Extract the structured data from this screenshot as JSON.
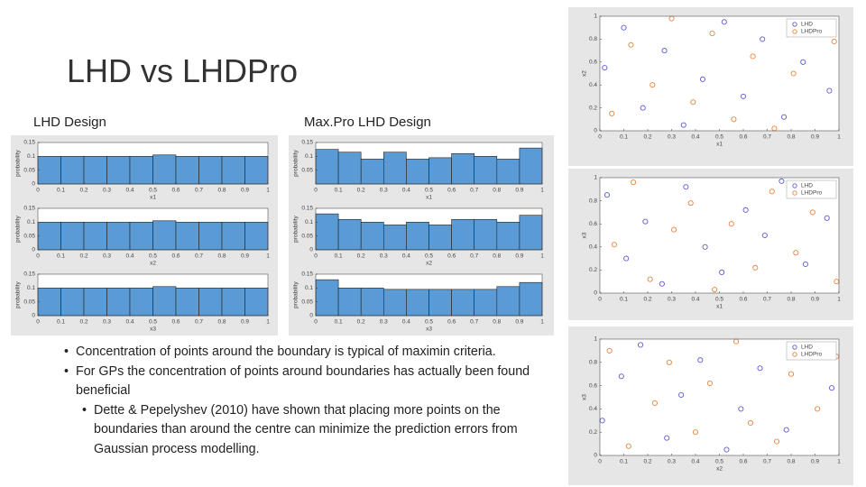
{
  "slide": {
    "title": "LHD vs LHDPro",
    "left_heading": "LHD Design",
    "right_heading": "Max.Pro LHD Design",
    "bullets": [
      "Concentration of points around the boundary is typical of maximin criteria.",
      "For GPs the concentration of points around boundaries has actually been found beneficial"
    ],
    "sub_bullets": [
      "Dette & Pepelyshev (2010) have shown that placing more points on the boundaries than around the centre can minimize the prediction errors from Gaussian process modelling."
    ]
  },
  "chart_data": [
    {
      "type": "histogram",
      "xlabel": "x1",
      "ylabel": "probability",
      "color": "#5b9bd5",
      "bins": [
        0,
        0.1,
        0.2,
        0.3,
        0.4,
        0.5,
        0.6,
        0.7,
        0.8,
        0.9,
        1
      ],
      "values": [
        0.1,
        0.1,
        0.1,
        0.1,
        0.1,
        0.105,
        0.1,
        0.1,
        0.1,
        0.1
      ],
      "xlim": [
        0,
        1
      ],
      "ylim": [
        0,
        0.15
      ],
      "xticks": [
        0,
        0.1,
        0.2,
        0.3,
        0.4,
        0.5,
        0.6,
        0.7,
        0.8,
        0.9,
        1
      ],
      "yticks": [
        0,
        0.05,
        0.1,
        0.15
      ]
    },
    {
      "type": "histogram",
      "xlabel": "x2",
      "ylabel": "probability",
      "color": "#5b9bd5",
      "bins": [
        0,
        0.1,
        0.2,
        0.3,
        0.4,
        0.5,
        0.6,
        0.7,
        0.8,
        0.9,
        1
      ],
      "values": [
        0.1,
        0.1,
        0.1,
        0.1,
        0.1,
        0.105,
        0.1,
        0.1,
        0.1,
        0.1
      ],
      "xlim": [
        0,
        1
      ],
      "ylim": [
        0,
        0.15
      ],
      "xticks": [
        0,
        0.1,
        0.2,
        0.3,
        0.4,
        0.5,
        0.6,
        0.7,
        0.8,
        0.9,
        1
      ],
      "yticks": [
        0,
        0.05,
        0.1,
        0.15
      ]
    },
    {
      "type": "histogram",
      "xlabel": "x3",
      "ylabel": "probability",
      "color": "#5b9bd5",
      "bins": [
        0,
        0.1,
        0.2,
        0.3,
        0.4,
        0.5,
        0.6,
        0.7,
        0.8,
        0.9,
        1
      ],
      "values": [
        0.1,
        0.1,
        0.1,
        0.1,
        0.1,
        0.105,
        0.1,
        0.1,
        0.1,
        0.1
      ],
      "xlim": [
        0,
        1
      ],
      "ylim": [
        0,
        0.15
      ],
      "xticks": [
        0,
        0.1,
        0.2,
        0.3,
        0.4,
        0.5,
        0.6,
        0.7,
        0.8,
        0.9,
        1
      ],
      "yticks": [
        0,
        0.05,
        0.1,
        0.15
      ]
    },
    {
      "type": "histogram",
      "xlabel": "x1",
      "ylabel": "probability",
      "color": "#5b9bd5",
      "bins": [
        0,
        0.1,
        0.2,
        0.3,
        0.4,
        0.5,
        0.6,
        0.7,
        0.8,
        0.9,
        1
      ],
      "values": [
        0.125,
        0.115,
        0.09,
        0.115,
        0.09,
        0.095,
        0.11,
        0.1,
        0.09,
        0.13
      ],
      "xlim": [
        0,
        1
      ],
      "ylim": [
        0,
        0.15
      ],
      "xticks": [
        0,
        0.1,
        0.2,
        0.3,
        0.4,
        0.5,
        0.6,
        0.7,
        0.8,
        0.9,
        1
      ],
      "yticks": [
        0.05,
        0.1,
        0.15
      ]
    },
    {
      "type": "histogram",
      "xlabel": "x2",
      "ylabel": "probability",
      "color": "#5b9bd5",
      "bins": [
        0,
        0.1,
        0.2,
        0.3,
        0.4,
        0.5,
        0.6,
        0.7,
        0.8,
        0.9,
        1
      ],
      "values": [
        0.13,
        0.11,
        0.1,
        0.09,
        0.1,
        0.09,
        0.11,
        0.11,
        0.1,
        0.125
      ],
      "xlim": [
        0,
        1
      ],
      "ylim": [
        0,
        0.15
      ],
      "xticks": [
        0,
        0.1,
        0.2,
        0.3,
        0.4,
        0.5,
        0.6,
        0.7,
        0.8,
        0.9,
        1
      ],
      "yticks": [
        0,
        0.05,
        0.1,
        0.15
      ]
    },
    {
      "type": "histogram",
      "xlabel": "x3",
      "ylabel": "probability",
      "color": "#5b9bd5",
      "bins": [
        0,
        0.1,
        0.2,
        0.3,
        0.4,
        0.5,
        0.6,
        0.7,
        0.8,
        0.9,
        1
      ],
      "values": [
        0.13,
        0.1,
        0.1,
        0.095,
        0.095,
        0.095,
        0.095,
        0.095,
        0.105,
        0.12
      ],
      "xlim": [
        0,
        1
      ],
      "ylim": [
        0,
        0.15
      ],
      "xticks": [
        0,
        0.1,
        0.2,
        0.3,
        0.4,
        0.5,
        0.6,
        0.7,
        0.8,
        0.9,
        1
      ],
      "yticks": [
        0,
        0.05,
        0.1,
        0.15
      ]
    },
    {
      "type": "scatter",
      "xlabel": "x1",
      "ylabel": "x2",
      "xlim": [
        0,
        1
      ],
      "ylim": [
        0,
        1
      ],
      "xticks": [
        0,
        0.1,
        0.2,
        0.3,
        0.4,
        0.5,
        0.6,
        0.7,
        0.8,
        0.9,
        1
      ],
      "yticks": [
        0,
        0.2,
        0.4,
        0.6,
        0.8,
        1
      ],
      "series": [
        {
          "name": "LHD",
          "color": "#5b5bd6",
          "x": [
            0.02,
            0.1,
            0.18,
            0.27,
            0.35,
            0.43,
            0.52,
            0.6,
            0.68,
            0.77,
            0.85,
            0.96
          ],
          "values": [
            0.55,
            0.9,
            0.2,
            0.7,
            0.05,
            0.45,
            0.95,
            0.3,
            0.8,
            0.12,
            0.6,
            0.35
          ]
        },
        {
          "name": "LHDPro",
          "color": "#e8843c",
          "x": [
            0.05,
            0.13,
            0.22,
            0.3,
            0.39,
            0.47,
            0.56,
            0.64,
            0.73,
            0.81,
            0.9,
            0.98
          ],
          "values": [
            0.15,
            0.75,
            0.4,
            0.98,
            0.25,
            0.85,
            0.1,
            0.65,
            0.02,
            0.5,
            0.92,
            0.78
          ]
        }
      ]
    },
    {
      "type": "scatter",
      "xlabel": "x1",
      "ylabel": "x3",
      "xlim": [
        0,
        1
      ],
      "ylim": [
        0,
        1
      ],
      "xticks": [
        0,
        0.1,
        0.2,
        0.3,
        0.4,
        0.5,
        0.6,
        0.7,
        0.8,
        0.9,
        1
      ],
      "yticks": [
        0,
        0.2,
        0.4,
        0.6,
        0.8,
        1
      ],
      "series": [
        {
          "name": "LHD",
          "color": "#5b5bd6",
          "x": [
            0.03,
            0.11,
            0.19,
            0.26,
            0.36,
            0.44,
            0.51,
            0.61,
            0.69,
            0.76,
            0.86,
            0.95
          ],
          "values": [
            0.85,
            0.3,
            0.62,
            0.08,
            0.92,
            0.4,
            0.18,
            0.72,
            0.5,
            0.97,
            0.25,
            0.65
          ]
        },
        {
          "name": "LHDPro",
          "color": "#e8843c",
          "x": [
            0.06,
            0.14,
            0.21,
            0.31,
            0.38,
            0.48,
            0.55,
            0.65,
            0.72,
            0.82,
            0.89,
            0.99
          ],
          "values": [
            0.42,
            0.96,
            0.12,
            0.55,
            0.78,
            0.03,
            0.6,
            0.22,
            0.88,
            0.35,
            0.7,
            0.1
          ]
        }
      ]
    },
    {
      "type": "scatter",
      "xlabel": "x2",
      "ylabel": "x3",
      "xlim": [
        0,
        1
      ],
      "ylim": [
        0,
        1
      ],
      "xticks": [
        0,
        0.1,
        0.2,
        0.3,
        0.4,
        0.5,
        0.6,
        0.7,
        0.8,
        0.9,
        1
      ],
      "yticks": [
        0,
        0.2,
        0.4,
        0.6,
        0.8,
        1
      ],
      "series": [
        {
          "name": "LHD",
          "color": "#5b5bd6",
          "x": [
            0.01,
            0.09,
            0.17,
            0.28,
            0.34,
            0.42,
            0.53,
            0.59,
            0.67,
            0.78,
            0.84,
            0.97
          ],
          "values": [
            0.3,
            0.68,
            0.95,
            0.15,
            0.52,
            0.82,
            0.05,
            0.4,
            0.75,
            0.22,
            0.9,
            0.58
          ]
        },
        {
          "name": "LHDPro",
          "color": "#e8843c",
          "x": [
            0.04,
            0.12,
            0.23,
            0.29,
            0.4,
            0.46,
            0.57,
            0.63,
            0.74,
            0.8,
            0.91,
            0.99
          ],
          "values": [
            0.9,
            0.08,
            0.45,
            0.8,
            0.2,
            0.62,
            0.98,
            0.28,
            0.12,
            0.7,
            0.4,
            0.85
          ]
        }
      ]
    }
  ]
}
